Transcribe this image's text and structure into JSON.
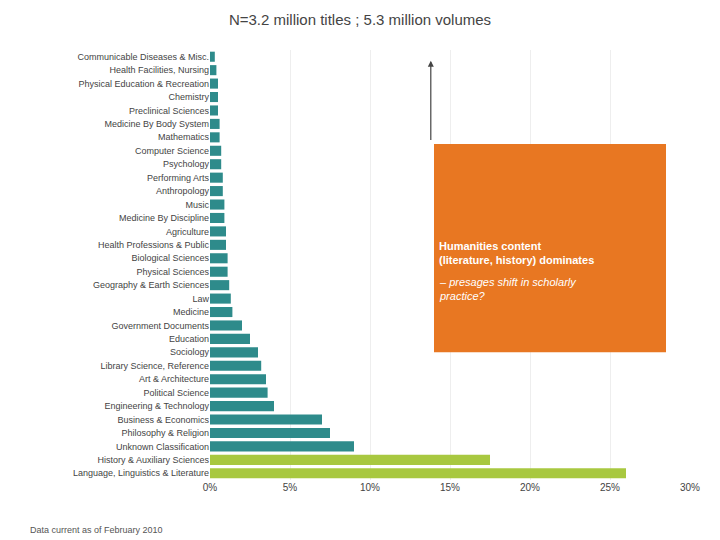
{
  "chart_data": {
    "type": "bar",
    "orientation": "horizontal",
    "title": "N=3.2 million titles ; 5.3 million volumes",
    "categories": [
      "Communicable Diseases & Misc.",
      "Health Facilities, Nursing",
      "Physical Education & Recreation",
      "Chemistry",
      "Preclinical Sciences",
      "Medicine By Body System",
      "Mathematics",
      "Computer Science",
      "Psychology",
      "Performing Arts",
      "Anthropology",
      "Music",
      "Medicine By Discipline",
      "Agriculture",
      "Health Professions & Public",
      "Biological Sciences",
      "Physical Sciences",
      "Geography & Earth Sciences",
      "Law",
      "Medicine",
      "Government Documents",
      "Education",
      "Sociology",
      "Library Science, Reference",
      "Art & Architecture",
      "Political Science",
      "Engineering & Technology",
      "Business & Economics",
      "Philosophy & Religion",
      "Unknown Classification",
      "History & Auxiliary Sciences",
      "Language, Linguistics & Literature"
    ],
    "values": [
      0.3,
      0.4,
      0.5,
      0.5,
      0.5,
      0.6,
      0.6,
      0.7,
      0.7,
      0.8,
      0.8,
      0.9,
      0.9,
      1.0,
      1.0,
      1.1,
      1.1,
      1.2,
      1.3,
      1.4,
      2.0,
      2.5,
      3.0,
      3.2,
      3.5,
      3.6,
      4.0,
      7.0,
      7.5,
      9.0,
      17.5,
      26.0
    ],
    "colors": [
      "#2e8b8b",
      "#2e8b8b",
      "#2e8b8b",
      "#2e8b8b",
      "#2e8b8b",
      "#2e8b8b",
      "#2e8b8b",
      "#2e8b8b",
      "#2e8b8b",
      "#2e8b8b",
      "#2e8b8b",
      "#2e8b8b",
      "#2e8b8b",
      "#2e8b8b",
      "#2e8b8b",
      "#2e8b8b",
      "#2e8b8b",
      "#2e8b8b",
      "#2e8b8b",
      "#2e8b8b",
      "#2e8b8b",
      "#2e8b8b",
      "#2e8b8b",
      "#2e8b8b",
      "#2e8b8b",
      "#2e8b8b",
      "#2e8b8b",
      "#2e8b8b",
      "#2e8b8b",
      "#2e8b8b",
      "#a8c840",
      "#a8c840"
    ],
    "xlim": [
      0,
      30
    ],
    "xticks": [
      {
        "value": 0,
        "label": "0%"
      },
      {
        "value": 5,
        "label": "5%"
      },
      {
        "value": 10,
        "label": "10%"
      },
      {
        "value": 15,
        "label": "15%"
      },
      {
        "value": 20,
        "label": "20%"
      },
      {
        "value": 25,
        "label": "25%"
      },
      {
        "value": 30,
        "label": "30%"
      }
    ],
    "grid": true,
    "annotations": [
      {
        "text": "Humanities content\n(literature, history) dominates",
        "color": "#e87722"
      },
      {
        "text": "– presages shift in scholarly\npractice?",
        "color": "#e87722"
      }
    ],
    "footer": "Data current as of February 2010"
  }
}
